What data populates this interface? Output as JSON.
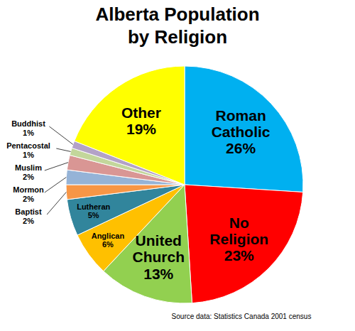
{
  "chart_data": {
    "type": "pie",
    "title": "Alberta Population by Religion",
    "categories": [
      "Roman Catholic",
      "No Religion",
      "United Church",
      "Anglican",
      "Lutheran",
      "Baptist",
      "Mormon",
      "Muslim",
      "Pentacostal",
      "Buddhist",
      "Other"
    ],
    "values": [
      26,
      23,
      13,
      6,
      5,
      2,
      2,
      2,
      1,
      1,
      19
    ],
    "value_labels": [
      "26%",
      "23%",
      "13%",
      "6%",
      "5%",
      "2%",
      "2%",
      "2%",
      "1%",
      "1%",
      "19%"
    ],
    "colors": [
      "#00B0F0",
      "#FF0000",
      "#92D050",
      "#FFC000",
      "#31859C",
      "#F79646",
      "#95B3D7",
      "#D99694",
      "#C3D69B",
      "#B3A2C7",
      "#FFFF00"
    ],
    "data_labels": true,
    "annotations": [
      "Source data: Statistics Canada 2001 census"
    ]
  }
}
